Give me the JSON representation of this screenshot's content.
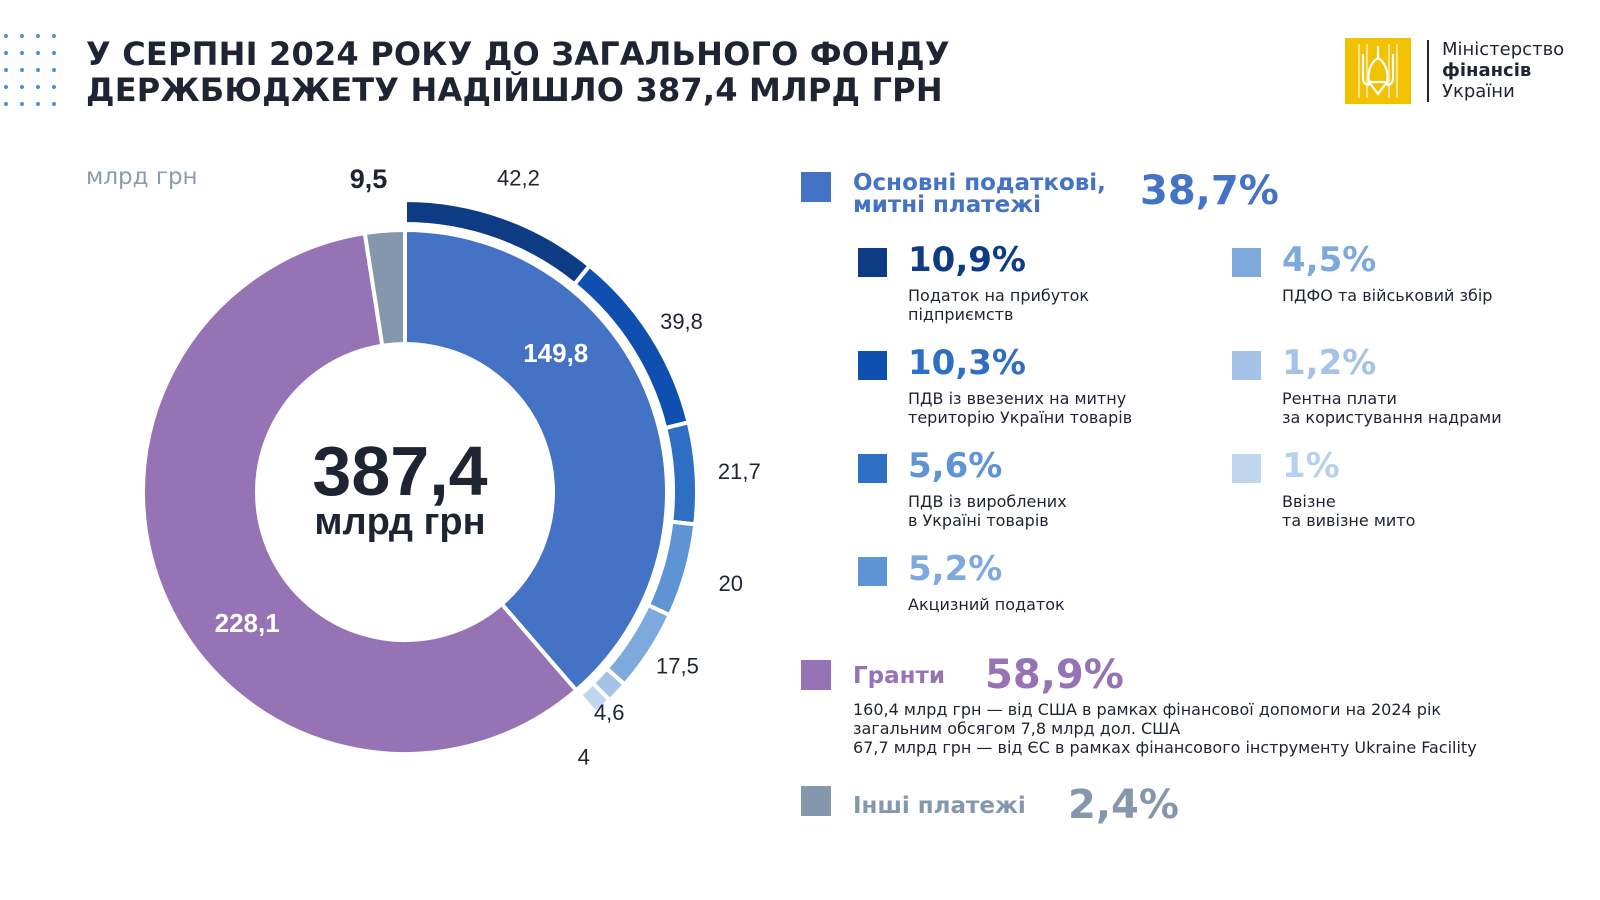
{
  "title": {
    "line1": "У СЕРПНІ 2024 РОКУ ДО ЗАГАЛЬНОГО ФОНДУ",
    "line2": "ДЕРЖБЮДЖЕТУ НАДІЙШЛО 387,4 МЛРД ГРН"
  },
  "logo": {
    "line1": "Міністерство",
    "line2": "фінансів",
    "line3": "України"
  },
  "unit_label": "млрд грн",
  "center": {
    "value": "387,4",
    "unit": "млрд грн"
  },
  "chart_data": {
    "type": "pie",
    "subtype": "donut with outer breakdown ring",
    "unit": "млрд грн",
    "total": 387.4,
    "inner_ring": [
      {
        "name": "Основні податкові, митні платежі",
        "value": 149.8,
        "label": "149,8",
        "color": "#4472c4"
      },
      {
        "name": "Гранти",
        "value": 228.1,
        "label": "228,1",
        "color": "#9673b4"
      },
      {
        "name": "Інші платежі",
        "value": 9.5,
        "label": "9,5",
        "color": "#8497ad"
      }
    ],
    "outer_ring": [
      {
        "value": 42.2,
        "label": "42,2",
        "color": "#0d3c84"
      },
      {
        "value": 39.8,
        "label": "39,8",
        "color": "#0e4fb0"
      },
      {
        "value": 21.7,
        "label": "21,7",
        "color": "#2e6fc4"
      },
      {
        "value": 20,
        "label": "20",
        "color": "#5f94d4"
      },
      {
        "value": 17.5,
        "label": "17,5",
        "color": "#7ea9dc"
      },
      {
        "value": 4.6,
        "label": "4,6",
        "color": "#a4c3e6"
      },
      {
        "value": 4,
        "label": "4",
        "color": "#c0d6ee"
      }
    ]
  },
  "legend": {
    "main": {
      "label_line1": "Основні податкові,",
      "label_line2": "митні платежі",
      "pct": "38,7%",
      "color": "#4472c4"
    },
    "items": [
      {
        "pct": "10,9%",
        "desc1": "Податок на прибуток",
        "desc2": "підприємств",
        "color": "#0d3c84",
        "pct_color": "#0d3c84"
      },
      {
        "pct": "4,5%",
        "desc1": "ПДФО та військовий збір",
        "desc2": "",
        "color": "#7ea9dc",
        "pct_color": "#7ea9dc"
      },
      {
        "pct": "10,3%",
        "desc1": "ПДВ із ввезених на митну",
        "desc2": "територію України товарів",
        "color": "#0e4fb0",
        "pct_color": "#2e6fc4"
      },
      {
        "pct": "1,2%",
        "desc1": "Рентна плати",
        "desc2": "за користування надрами",
        "color": "#a4c3e6",
        "pct_color": "#a4c3e6"
      },
      {
        "pct": "5,6%",
        "desc1": "ПДВ із вироблених",
        "desc2": "в Україні товарів",
        "color": "#2e6fc4",
        "pct_color": "#5f94d4"
      },
      {
        "pct": "1%",
        "desc1": "Ввізне",
        "desc2": "та вивізне мито",
        "color": "#c0d6ee",
        "pct_color": "#b8d0ec"
      },
      {
        "pct": "5,2%",
        "desc1": "Акцизний податок",
        "desc2": "",
        "color": "#5f94d4",
        "pct_color": "#7ea9dc"
      }
    ],
    "grants": {
      "label": "Гранти",
      "pct": "58,9%",
      "color": "#9673b4",
      "notes": [
        "160,4 млрд грн — від США в рамках фінансової допомоги на 2024 рік",
        "загальним обсягом 7,8 млрд дол. США",
        "67,7 млрд грн — від ЄС в рамках фінансового інструменту Ukraine Facility"
      ]
    },
    "other": {
      "label": "Інші платежі",
      "pct": "2,4%",
      "color": "#8497ad"
    }
  }
}
